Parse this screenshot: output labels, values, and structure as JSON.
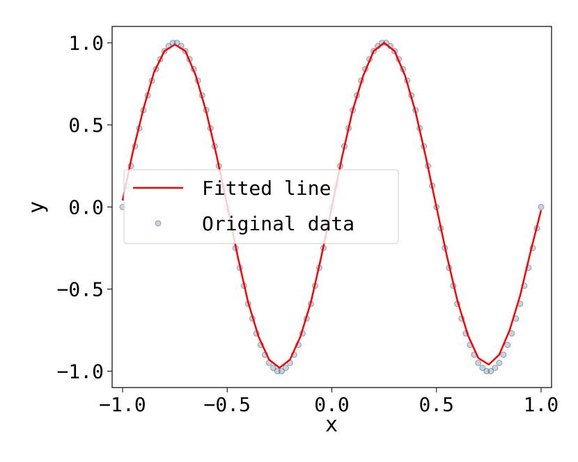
{
  "chart_data": {
    "type": "scatter",
    "xlabel": "x",
    "ylabel": "y",
    "xlim": [
      -1.05,
      1.05
    ],
    "ylim": [
      -1.1,
      1.1
    ],
    "xticks": [
      -1.0,
      -0.5,
      0.0,
      0.5,
      1.0
    ],
    "xtick_labels": [
      "−1.0",
      "−0.5",
      "0.0",
      "0.5",
      "1.0"
    ],
    "yticks": [
      -1.0,
      -0.5,
      0.0,
      0.5,
      1.0
    ],
    "ytick_labels": [
      "−1.0",
      "−0.5",
      "0.0",
      "0.5",
      "1.0"
    ],
    "grid": false,
    "legend_position": "center-left",
    "series": [
      {
        "name": "Fitted line",
        "kind": "line",
        "color": "#ff0000",
        "x": [
          -1.0,
          -0.95,
          -0.9,
          -0.85,
          -0.8,
          -0.75,
          -0.7,
          -0.65,
          -0.6,
          -0.55,
          -0.5,
          -0.45,
          -0.4,
          -0.35,
          -0.3,
          -0.25,
          -0.2,
          -0.15,
          -0.1,
          -0.05,
          0.0,
          0.05,
          0.1,
          0.15,
          0.2,
          0.25,
          0.3,
          0.35,
          0.4,
          0.45,
          0.5,
          0.55,
          0.6,
          0.65,
          0.7,
          0.75,
          0.8,
          0.85,
          0.9,
          0.95,
          1.0
        ],
        "y": [
          0.04,
          0.34,
          0.6,
          0.82,
          0.95,
          0.99,
          0.95,
          0.8,
          0.58,
          0.31,
          0.01,
          -0.3,
          -0.58,
          -0.79,
          -0.93,
          -0.98,
          -0.93,
          -0.79,
          -0.58,
          -0.3,
          0.0,
          0.31,
          0.59,
          0.8,
          0.95,
          1.0,
          0.95,
          0.8,
          0.58,
          0.3,
          0.0,
          -0.3,
          -0.57,
          -0.78,
          -0.92,
          -0.96,
          -0.9,
          -0.75,
          -0.54,
          -0.27,
          -0.02
        ]
      },
      {
        "name": "Original data",
        "kind": "scatter",
        "color": "#1f4e79",
        "x": [
          -1.0,
          -0.98,
          -0.96,
          -0.94,
          -0.92,
          -0.9,
          -0.88,
          -0.86,
          -0.84,
          -0.82,
          -0.8,
          -0.78,
          -0.76,
          -0.74,
          -0.72,
          -0.7,
          -0.68,
          -0.66,
          -0.64,
          -0.62,
          -0.6,
          -0.58,
          -0.56,
          -0.54,
          -0.52,
          -0.5,
          -0.48,
          -0.46,
          -0.44,
          -0.42,
          -0.4,
          -0.38,
          -0.36,
          -0.34,
          -0.32,
          -0.3,
          -0.28,
          -0.26,
          -0.24,
          -0.22,
          -0.2,
          -0.18,
          -0.16,
          -0.14,
          -0.12,
          -0.1,
          -0.08,
          -0.06,
          -0.04,
          -0.02,
          0.0,
          0.02,
          0.04,
          0.06,
          0.08,
          0.1,
          0.12,
          0.14,
          0.16,
          0.18,
          0.2,
          0.22,
          0.24,
          0.26,
          0.28,
          0.3,
          0.32,
          0.34,
          0.36,
          0.38,
          0.4,
          0.42,
          0.44,
          0.46,
          0.48,
          0.5,
          0.52,
          0.54,
          0.56,
          0.58,
          0.6,
          0.62,
          0.64,
          0.66,
          0.68,
          0.7,
          0.72,
          0.74,
          0.76,
          0.78,
          0.8,
          0.82,
          0.84,
          0.86,
          0.88,
          0.9,
          0.92,
          0.94,
          0.96,
          0.98,
          1.0
        ],
        "y": [
          0.0,
          0.13,
          0.25,
          0.37,
          0.48,
          0.59,
          0.68,
          0.77,
          0.84,
          0.9,
          0.95,
          0.98,
          1.0,
          1.0,
          0.98,
          0.95,
          0.9,
          0.84,
          0.77,
          0.68,
          0.59,
          0.48,
          0.37,
          0.25,
          0.13,
          0.0,
          -0.13,
          -0.25,
          -0.37,
          -0.48,
          -0.59,
          -0.68,
          -0.77,
          -0.84,
          -0.9,
          -0.95,
          -0.98,
          -1.0,
          -1.0,
          -0.98,
          -0.95,
          -0.9,
          -0.84,
          -0.77,
          -0.68,
          -0.59,
          -0.48,
          -0.37,
          -0.25,
          -0.13,
          0.0,
          0.13,
          0.25,
          0.37,
          0.48,
          0.59,
          0.68,
          0.77,
          0.84,
          0.9,
          0.95,
          0.98,
          1.0,
          1.0,
          0.98,
          0.95,
          0.9,
          0.84,
          0.77,
          0.68,
          0.59,
          0.48,
          0.37,
          0.25,
          0.13,
          0.0,
          -0.13,
          -0.25,
          -0.37,
          -0.48,
          -0.59,
          -0.68,
          -0.77,
          -0.84,
          -0.9,
          -0.95,
          -0.98,
          -1.0,
          -1.0,
          -0.98,
          -0.95,
          -0.9,
          -0.84,
          -0.77,
          -0.68,
          -0.59,
          -0.48,
          -0.37,
          -0.25,
          -0.13,
          0.0
        ]
      }
    ]
  }
}
